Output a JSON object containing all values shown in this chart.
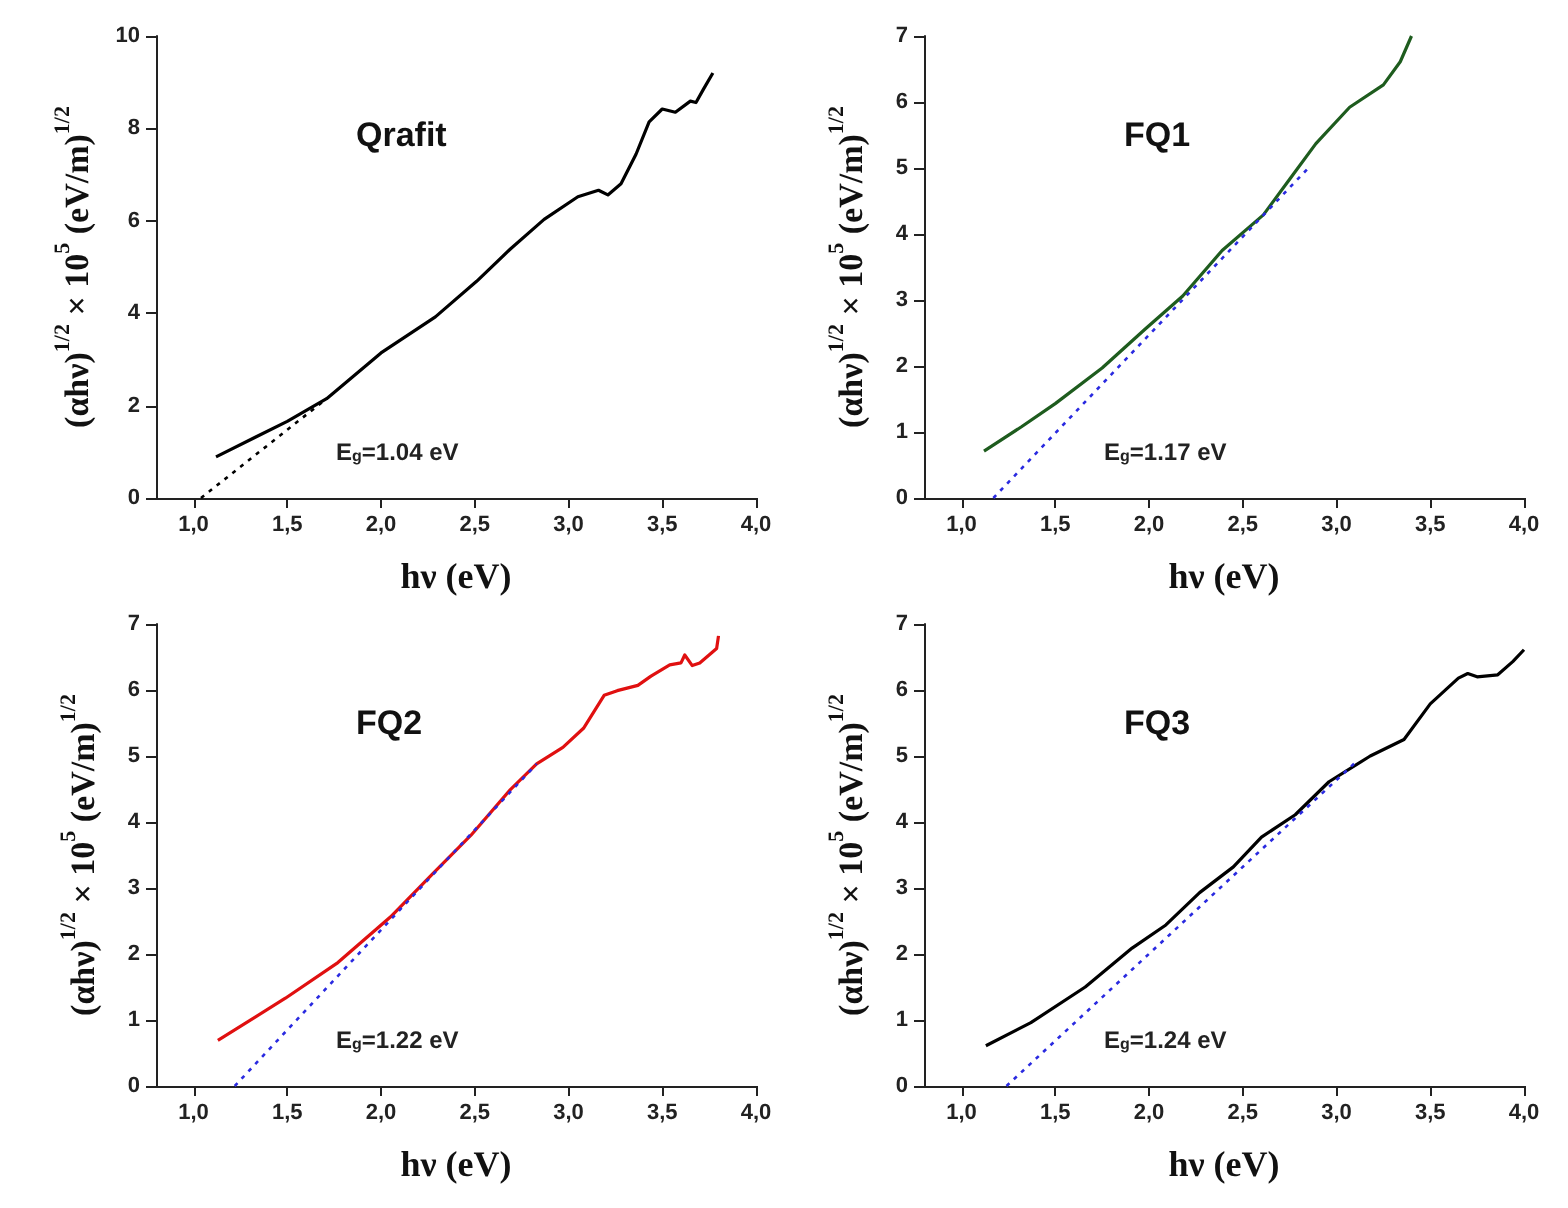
{
  "chart_data": [
    {
      "type": "line",
      "title": "Qrafit",
      "xlabel": "hν (eV)",
      "ylabel": "(αhν)$^{1/2}$ × 10$^{5}$ (eV/m)$^{1/2}$",
      "xlim": [
        0.8,
        4.0
      ],
      "xticks": [
        {
          "value": 1,
          "label": "1,0"
        },
        {
          "value": 1.5,
          "label": "1,5"
        },
        {
          "value": 2,
          "label": "2,0"
        },
        {
          "value": 2.5,
          "label": "2,5"
        },
        {
          "value": 3,
          "label": "3,0"
        },
        {
          "value": 3.5,
          "label": "3,5"
        },
        {
          "value": 4,
          "label": "4,0"
        }
      ],
      "ylim": [
        0,
        10
      ],
      "yticks": [
        0,
        2,
        4,
        6,
        8,
        10
      ],
      "grid": false,
      "marker": "none",
      "annotations": [
        "E$_{g}$=1.04 eV"
      ],
      "series": [
        {
          "color": "#000000",
          "line_style": "solid",
          "x": [
            1.12,
            1.5,
            1.71,
            2.0,
            2.29,
            2.51,
            2.69,
            2.87,
            3.05,
            3.16,
            3.21,
            3.28,
            3.36,
            3.43,
            3.5,
            3.57,
            3.65,
            3.68,
            3.72,
            3.77
          ],
          "values": [
            0.89,
            1.66,
            2.15,
            3.14,
            3.92,
            4.69,
            5.39,
            6.03,
            6.52,
            6.66,
            6.56,
            6.8,
            7.44,
            8.14,
            8.42,
            8.35,
            8.59,
            8.56,
            8.85,
            9.2
          ]
        },
        {
          "color": "#000000",
          "line_style": "dotted",
          "x": [
            1.04,
            1.71
          ],
          "values": [
            0,
            2.15
          ]
        }
      ]
    },
    {
      "type": "line",
      "title": "FQ1",
      "xlabel": "hν (eV)",
      "ylabel": "(αhν)$^{1/2}$ × 10$^{5}$ (eV/m)$^{1/2}$",
      "xlim": [
        0.8,
        4.0
      ],
      "xticks": [
        {
          "value": 1,
          "label": "1,0"
        },
        {
          "value": 1.5,
          "label": "1,5"
        },
        {
          "value": 2,
          "label": "2,0"
        },
        {
          "value": 2.5,
          "label": "2,5"
        },
        {
          "value": 3,
          "label": "3,0"
        },
        {
          "value": 3.5,
          "label": "3,5"
        },
        {
          "value": 4,
          "label": "4,0"
        }
      ],
      "ylim": [
        0,
        7
      ],
      "yticks": [
        0,
        1,
        2,
        3,
        4,
        5,
        6,
        7
      ],
      "grid": false,
      "marker": "none",
      "annotations": [
        "E$_{g}$=1.17 eV"
      ],
      "series": [
        {
          "color": "#1e5c1e",
          "line_style": "solid",
          "x": [
            1.12,
            1.32,
            1.5,
            1.75,
            1.98,
            2.18,
            2.39,
            2.61,
            2.75,
            2.89,
            3.07,
            3.25,
            3.34,
            3.4
          ],
          "values": [
            0.71,
            1.08,
            1.43,
            1.97,
            2.56,
            3.06,
            3.75,
            4.29,
            4.83,
            5.37,
            5.92,
            6.26,
            6.61,
            7.0
          ]
        },
        {
          "color": "#2a2ae0",
          "line_style": "dotted",
          "x": [
            1.17,
            2.86
          ],
          "values": [
            0,
            5.03
          ]
        }
      ]
    },
    {
      "type": "line",
      "title": "FQ2",
      "xlabel": "hν (eV)",
      "ylabel": "(αhν)$^{1/2}$ × 10$^{5}$ (eV/m)$^{1/2}$",
      "xlim": [
        0.8,
        4.0
      ],
      "xticks": [
        {
          "value": 1,
          "label": "1,0"
        },
        {
          "value": 1.5,
          "label": "1,5"
        },
        {
          "value": 2,
          "label": "2,0"
        },
        {
          "value": 2.5,
          "label": "2,5"
        },
        {
          "value": 3,
          "label": "3,0"
        },
        {
          "value": 3.5,
          "label": "3,5"
        },
        {
          "value": 4,
          "label": "4,0"
        }
      ],
      "ylim": [
        0,
        7
      ],
      "yticks": [
        0,
        1,
        2,
        3,
        4,
        5,
        6,
        7
      ],
      "grid": false,
      "marker": "none",
      "annotations": [
        "E$_{g}$=1.22 eV"
      ],
      "series": [
        {
          "color": "#e01010",
          "line_style": "solid",
          "x": [
            1.13,
            1.49,
            1.77,
            2.05,
            2.27,
            2.48,
            2.69,
            2.83,
            2.97,
            3.08,
            3.19,
            3.26,
            3.37,
            3.44,
            3.54,
            3.6,
            3.62,
            3.66,
            3.7,
            3.79,
            3.8
          ],
          "values": [
            0.69,
            1.33,
            1.87,
            2.56,
            3.2,
            3.8,
            4.49,
            4.88,
            5.13,
            5.42,
            5.92,
            5.99,
            6.07,
            6.21,
            6.38,
            6.41,
            6.53,
            6.37,
            6.41,
            6.63,
            6.82
          ]
        },
        {
          "color": "#2a2ae0",
          "line_style": "dotted",
          "x": [
            1.22,
            2.83
          ],
          "values": [
            0,
            4.88
          ]
        }
      ]
    },
    {
      "type": "line",
      "title": "FQ3",
      "xlabel": "hν (eV)",
      "ylabel": "(αhν)$^{1/2}$ × 10$^{5}$ (eV/m)$^{1/2}$",
      "xlim": [
        0.8,
        4.0
      ],
      "xticks": [
        {
          "value": 1,
          "label": "1,0"
        },
        {
          "value": 1.5,
          "label": "1,5"
        },
        {
          "value": 2,
          "label": "2,0"
        },
        {
          "value": 2.5,
          "label": "2,5"
        },
        {
          "value": 3,
          "label": "3,0"
        },
        {
          "value": 3.5,
          "label": "3,5"
        },
        {
          "value": 4,
          "label": "4,0"
        }
      ],
      "ylim": [
        0,
        7
      ],
      "yticks": [
        0,
        1,
        2,
        3,
        4,
        5,
        6,
        7
      ],
      "grid": false,
      "marker": "none",
      "annotations": [
        "E$_{g}$=1.24 eV"
      ],
      "series": [
        {
          "color": "#000000",
          "line_style": "solid",
          "x": [
            1.13,
            1.37,
            1.66,
            1.91,
            2.09,
            2.27,
            2.45,
            2.6,
            2.78,
            2.96,
            3.18,
            3.36,
            3.5,
            3.65,
            3.7,
            3.75,
            3.86,
            3.94,
            4.0
          ],
          "values": [
            0.61,
            0.96,
            1.5,
            2.09,
            2.44,
            2.93,
            3.32,
            3.77,
            4.11,
            4.61,
            5.0,
            5.25,
            5.79,
            6.18,
            6.25,
            6.2,
            6.23,
            6.43,
            6.61
          ]
        },
        {
          "color": "#2a2ae0",
          "line_style": "dotted",
          "x": [
            1.24,
            3.1
          ],
          "values": [
            0,
            4.9
          ]
        }
      ]
    }
  ]
}
